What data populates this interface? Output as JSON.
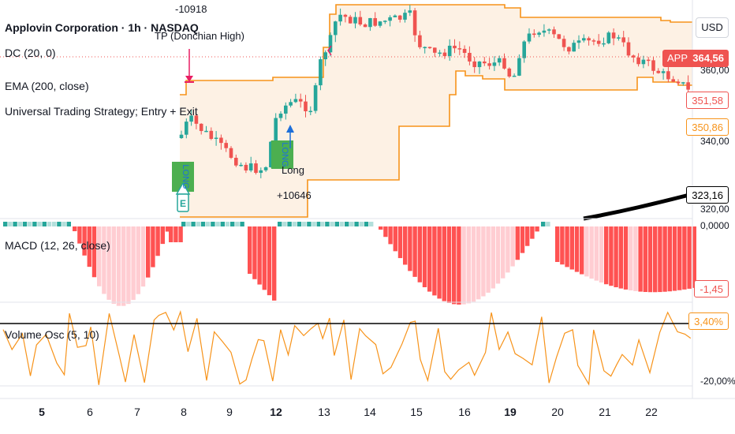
{
  "header": {
    "symbol_line": "Applovin Corporation · 1h · NASDAQ",
    "dc_legend": "DC (20, 0)",
    "ema_legend": "EMA (200, close)",
    "strategy_legend": "Universal Trading Strategy; Entry + Exit"
  },
  "currency_button": "USD",
  "price_axis": {
    "labels": [
      "360,00",
      "340,00",
      "320,00"
    ],
    "badges": {
      "app_tag": "APP",
      "last_price": "364,56",
      "dc_upper": "351,58",
      "dc_lower": "350,86",
      "ema": "323,16"
    }
  },
  "annotations": {
    "tp_value": "-10918",
    "tp_label": "TP (Donchian High)",
    "long_label": "Long",
    "long_value": "+10646",
    "long_flag_1": "LONG",
    "long_flag_2": "LONG",
    "entry_marker": "E"
  },
  "macd": {
    "legend": "MACD (12, 26, close)",
    "zero_label": "0,0000",
    "value_badge": "-1,45"
  },
  "volume_osc": {
    "legend": "Volume Osc (5, 10)",
    "value_badge": "3,40%",
    "low_label": "-20,00%"
  },
  "time_axis": [
    "5",
    "6",
    "7",
    "8",
    "9",
    "12",
    "13",
    "14",
    "15",
    "16",
    "19",
    "20",
    "21",
    "22"
  ],
  "time_axis_bold": [
    "5",
    "12",
    "19"
  ],
  "colors": {
    "up": "#26a69a",
    "down": "#ef5350",
    "donchian": "#f7931a",
    "donchian_fill": "#fdf1e4",
    "ema": "#000000",
    "macd_pos_strong": "#26a69a",
    "macd_pos_weak": "#b2dfdb",
    "macd_neg_strong": "#ff5252",
    "macd_neg_weak": "#ffcdd2",
    "vol_osc": "#f7931a",
    "long_flag": "#4caf50",
    "tp_marker": "#e91e63"
  },
  "icons": [
    "long-arrow-icon",
    "entry-marker-icon",
    "tp-arrow-icon"
  ]
}
